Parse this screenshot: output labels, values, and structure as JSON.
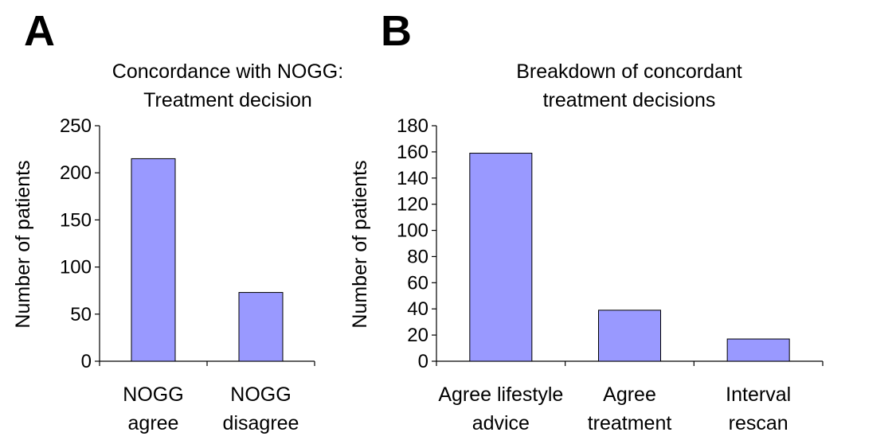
{
  "chart_data": [
    {
      "panel": "A",
      "type": "bar",
      "title": [
        "Concordance with NOGG:",
        "Treatment decision"
      ],
      "ylabel": "Number of patients",
      "xlabel": "",
      "ylim": [
        0,
        250
      ],
      "yticks": [
        0,
        50,
        100,
        150,
        200,
        250
      ],
      "categories": [
        [
          "NOGG",
          "agree"
        ],
        [
          "NOGG",
          "disagree"
        ]
      ],
      "values": [
        215,
        73
      ],
      "bar_color": "#9999ff",
      "grid": false
    },
    {
      "panel": "B",
      "type": "bar",
      "title": [
        "Breakdown of concordant",
        "treatment decisions"
      ],
      "ylabel": "Number of patients",
      "xlabel": "",
      "ylim": [
        0,
        180
      ],
      "yticks": [
        0,
        20,
        40,
        60,
        80,
        100,
        120,
        140,
        160,
        180
      ],
      "categories": [
        [
          "Agree lifestyle",
          "advice"
        ],
        [
          "Agree",
          "treatment"
        ],
        [
          "Interval",
          "rescan"
        ]
      ],
      "values": [
        159,
        39,
        17
      ],
      "bar_color": "#9999ff",
      "grid": false
    }
  ]
}
